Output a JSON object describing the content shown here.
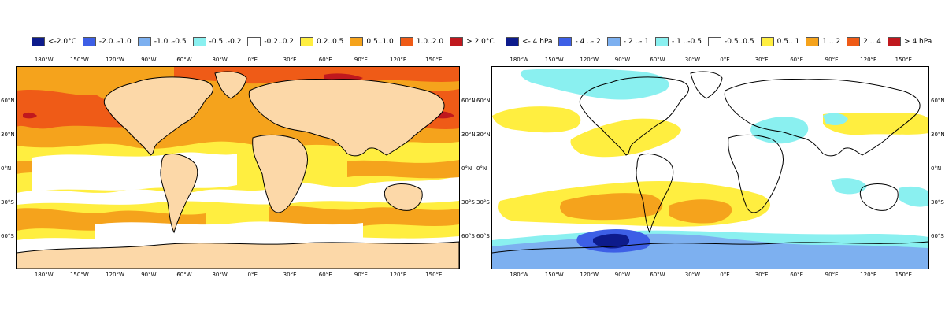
{
  "colors": {
    "land_left": "#fcd8a8",
    "ocean_neutral": "#ffffff",
    "coast": "#000000",
    "borders": "#999999",
    "sst": {
      "c1": "#ffee40",
      "c2": "#f5a31c",
      "c3": "#ef5b17",
      "c4": "#c0181e",
      "cn": "#8af0f0"
    },
    "slp": {
      "pos1": "#ffee40",
      "pos2": "#f5a31c",
      "neg1": "#8af0f0",
      "neg2": "#7db0f0",
      "neg3": "#3d5fe6",
      "neg4": "#0d1b8c"
    }
  },
  "left_panel": {
    "legend": [
      {
        "label": "<-2.0°C",
        "color": "#0d1b8c"
      },
      {
        "label": "-2.0..-1.0",
        "color": "#3d5fe6"
      },
      {
        "label": "-1.0..-0.5",
        "color": "#7db0f0"
      },
      {
        "label": "-0.5..-0.2",
        "color": "#8af0f0"
      },
      {
        "label": "-0.2..0.2",
        "color": "#ffffff"
      },
      {
        "label": "0.2..0.5",
        "color": "#ffee40"
      },
      {
        "label": "0.5..1.0",
        "color": "#f5a31c"
      },
      {
        "label": "1.0..2.0",
        "color": "#ef5b17"
      },
      {
        "label": "> 2.0°C",
        "color": "#c0181e"
      }
    ],
    "lon_labels": [
      "180°W",
      "150°W",
      "120°W",
      "90°W",
      "60°W",
      "30°W",
      "0°E",
      "30°E",
      "60°E",
      "90°E",
      "120°E",
      "150°E"
    ],
    "lat_labels": [
      "60°N",
      "30°N",
      "0°N",
      "30°S",
      "60°S"
    ]
  },
  "right_panel": {
    "legend": [
      {
        "label": "<- 4 hPa",
        "color": "#0d1b8c"
      },
      {
        "label": "- 4 ..- 2",
        "color": "#3d5fe6"
      },
      {
        "label": "- 2 ..- 1",
        "color": "#7db0f0"
      },
      {
        "label": "- 1 ..-0.5",
        "color": "#8af0f0"
      },
      {
        "label": "-0.5..0.5",
        "color": "#ffffff"
      },
      {
        "label": "0.5.. 1",
        "color": "#ffee40"
      },
      {
        "label": "1 .. 2",
        "color": "#f5a31c"
      },
      {
        "label": "2 .. 4",
        "color": "#ef5b17"
      },
      {
        "label": ">  4 hPa",
        "color": "#c0181e"
      }
    ],
    "lon_labels": [
      "180°W",
      "150°W",
      "120°W",
      "90°W",
      "60°W",
      "30°W",
      "0°E",
      "30°E",
      "60°E",
      "90°E",
      "120°E",
      "150°E"
    ],
    "lat_labels": [
      "60°N",
      "30°N",
      "0°N",
      "30°S",
      "60°S"
    ]
  }
}
